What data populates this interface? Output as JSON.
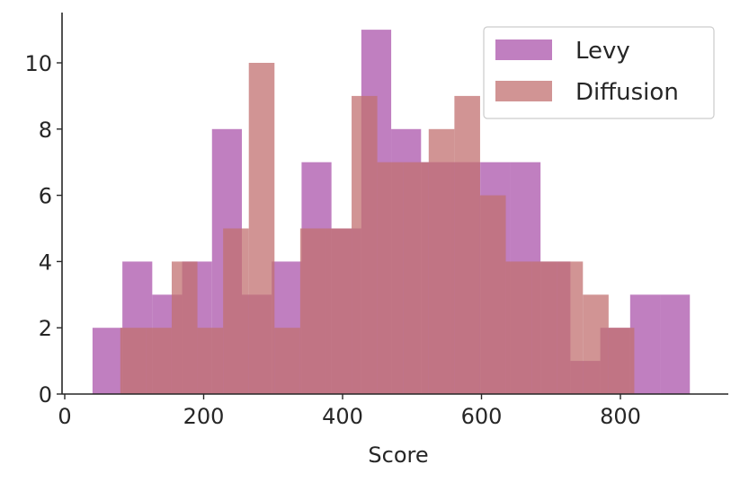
{
  "chart_data": {
    "type": "histogram",
    "title": "",
    "xlabel": "Score",
    "ylabel": "",
    "xlim": [
      0,
      950
    ],
    "ylim": [
      0,
      11.5
    ],
    "xticks": [
      0,
      200,
      400,
      600,
      800
    ],
    "yticks": [
      0,
      2,
      4,
      6,
      8,
      10
    ],
    "grid": false,
    "legend_position": "top-right",
    "series": [
      {
        "name": "Levy",
        "color": "#b05fb0",
        "opacity": 0.8,
        "bins": [
          {
            "x0": 40,
            "x1": 83,
            "value": 2
          },
          {
            "x0": 83,
            "x1": 126,
            "value": 4
          },
          {
            "x0": 126,
            "x1": 169,
            "value": 3
          },
          {
            "x0": 169,
            "x1": 212,
            "value": 4
          },
          {
            "x0": 212,
            "x1": 255,
            "value": 8
          },
          {
            "x0": 255,
            "x1": 298,
            "value": 3
          },
          {
            "x0": 298,
            "x1": 341,
            "value": 4
          },
          {
            "x0": 341,
            "x1": 384,
            "value": 7
          },
          {
            "x0": 384,
            "x1": 427,
            "value": 5
          },
          {
            "x0": 427,
            "x1": 470,
            "value": 11
          },
          {
            "x0": 470,
            "x1": 513,
            "value": 8
          },
          {
            "x0": 513,
            "x1": 556,
            "value": 7
          },
          {
            "x0": 556,
            "x1": 599,
            "value": 7
          },
          {
            "x0": 599,
            "x1": 642,
            "value": 7
          },
          {
            "x0": 642,
            "x1": 685,
            "value": 7
          },
          {
            "x0": 685,
            "x1": 728,
            "value": 4
          },
          {
            "x0": 728,
            "x1": 771,
            "value": 1
          },
          {
            "x0": 771,
            "x1": 814,
            "value": 2
          },
          {
            "x0": 814,
            "x1": 857,
            "value": 3
          },
          {
            "x0": 857,
            "x1": 900,
            "value": 3
          }
        ]
      },
      {
        "name": "Diffusion",
        "color": "#c27070",
        "opacity": 0.75,
        "bins": [
          {
            "x0": 80,
            "x1": 117,
            "value": 2
          },
          {
            "x0": 117,
            "x1": 154,
            "value": 2
          },
          {
            "x0": 154,
            "x1": 191,
            "value": 4
          },
          {
            "x0": 191,
            "x1": 228,
            "value": 2
          },
          {
            "x0": 228,
            "x1": 265,
            "value": 5
          },
          {
            "x0": 265,
            "x1": 302,
            "value": 10
          },
          {
            "x0": 302,
            "x1": 339,
            "value": 2
          },
          {
            "x0": 339,
            "x1": 376,
            "value": 5
          },
          {
            "x0": 376,
            "x1": 413,
            "value": 5
          },
          {
            "x0": 413,
            "x1": 450,
            "value": 9
          },
          {
            "x0": 450,
            "x1": 487,
            "value": 7
          },
          {
            "x0": 487,
            "x1": 524,
            "value": 7
          },
          {
            "x0": 524,
            "x1": 561,
            "value": 8
          },
          {
            "x0": 561,
            "x1": 598,
            "value": 9
          },
          {
            "x0": 598,
            "x1": 635,
            "value": 6
          },
          {
            "x0": 635,
            "x1": 672,
            "value": 4
          },
          {
            "x0": 672,
            "x1": 709,
            "value": 4
          },
          {
            "x0": 709,
            "x1": 746,
            "value": 4
          },
          {
            "x0": 746,
            "x1": 783,
            "value": 3
          },
          {
            "x0": 783,
            "x1": 820,
            "value": 2
          }
        ]
      }
    ]
  }
}
